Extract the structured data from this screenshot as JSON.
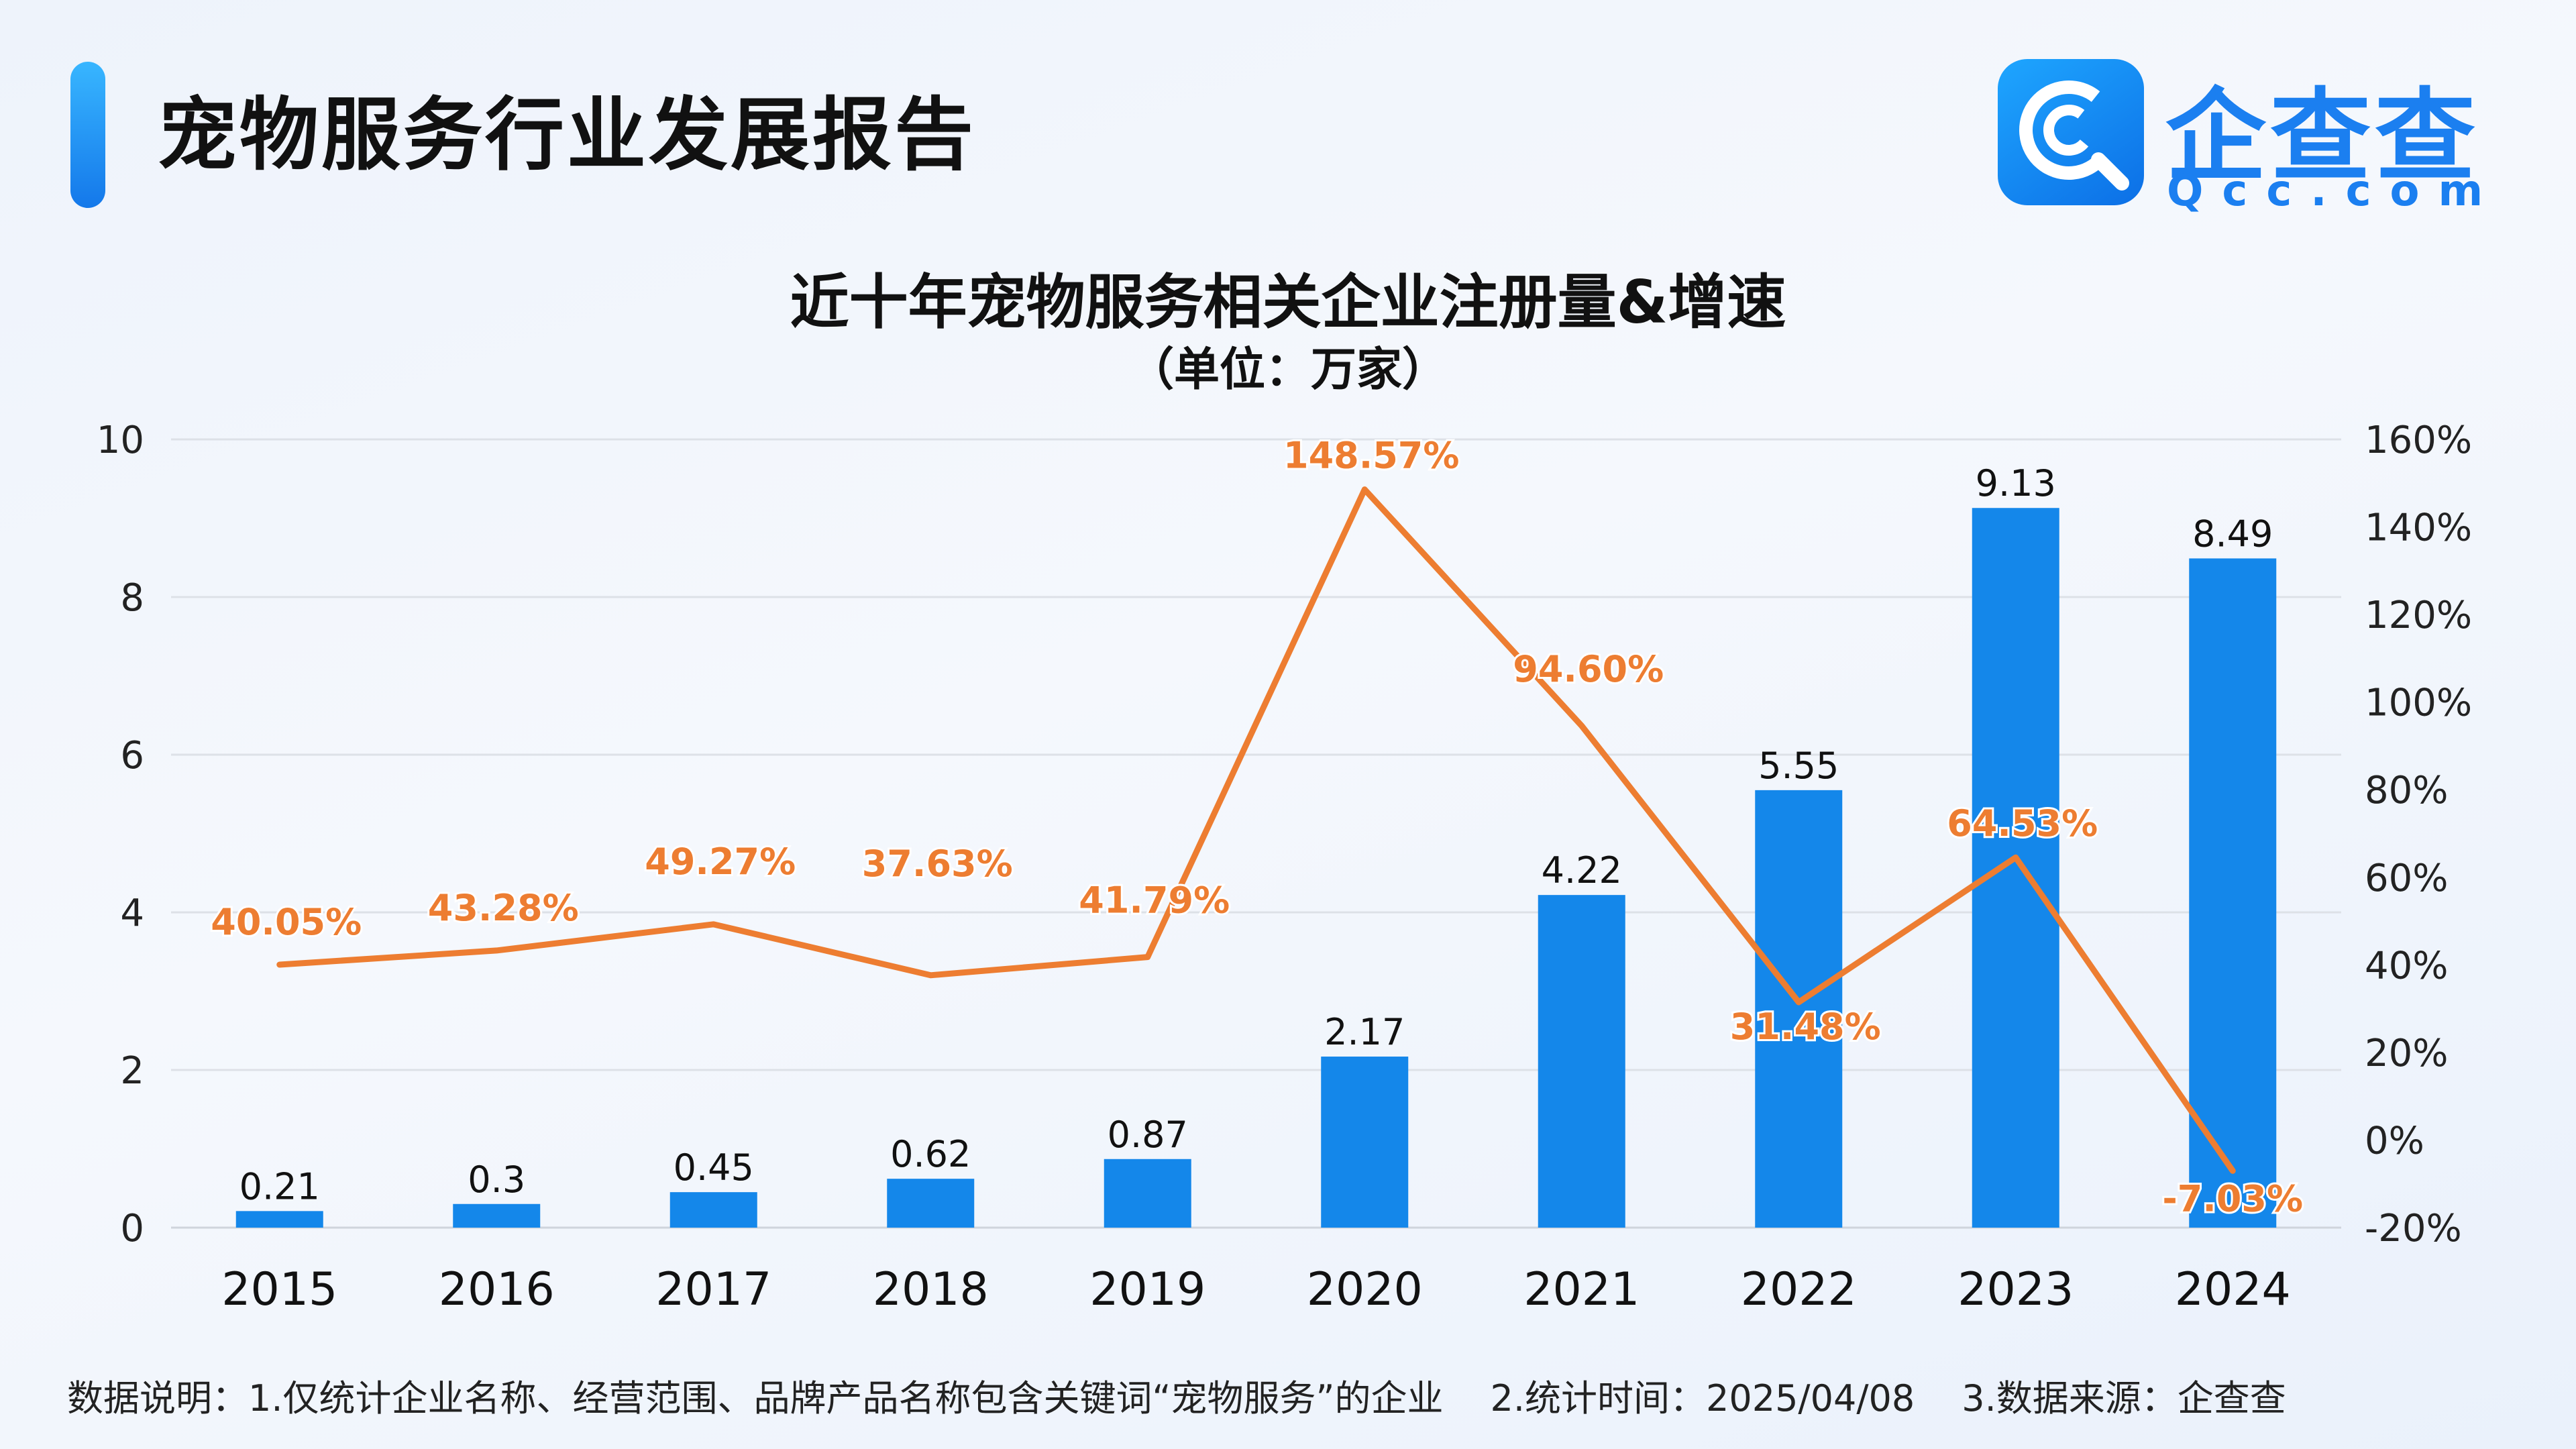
{
  "header": {
    "report_title": "宠物服务行业发展报告",
    "logo_name": "企查查",
    "logo_domain": "Qcc.com",
    "logo_icon": "qcc-logo-icon"
  },
  "colors": {
    "bar": "#1487ea",
    "line": "#ed7d31",
    "accent": "#1478ea"
  },
  "chart_data": {
    "type": "bar",
    "title": "近十年宠物服务相关企业注册量&增速",
    "subtitle": "（单位：万家）",
    "categories": [
      "2015",
      "2016",
      "2017",
      "2018",
      "2019",
      "2020",
      "2021",
      "2022",
      "2023",
      "2024"
    ],
    "series": [
      {
        "type": "bar",
        "axis": "left",
        "values": [
          0.21,
          0.3,
          0.45,
          0.62,
          0.87,
          2.17,
          4.22,
          5.55,
          9.13,
          8.49
        ],
        "labels": [
          "0.21",
          "0.3",
          "0.45",
          "0.62",
          "0.87",
          "2.17",
          "4.22",
          "5.55",
          "9.13",
          "8.49"
        ]
      },
      {
        "type": "line",
        "axis": "right",
        "values": [
          40.05,
          43.28,
          49.27,
          37.63,
          41.79,
          148.57,
          94.6,
          31.48,
          64.53,
          -7.03
        ],
        "labels": [
          "40.05%",
          "43.28%",
          "49.27%",
          "37.63%",
          "41.79%",
          "148.57%",
          "94.60%",
          "31.48%",
          "64.53%",
          "-7.03%"
        ]
      }
    ],
    "y_left": {
      "min": 0,
      "max": 10,
      "ticks": [
        "0",
        "2",
        "4",
        "6",
        "8",
        "10"
      ],
      "tick_values": [
        0,
        2,
        4,
        6,
        8,
        10
      ]
    },
    "y_right": {
      "min": -20,
      "max": 160,
      "ticks": [
        "-20%",
        "0%",
        "20%",
        "40%",
        "60%",
        "80%",
        "100%",
        "120%",
        "140%",
        "160%"
      ],
      "tick_values": [
        -20,
        0,
        20,
        40,
        60,
        80,
        100,
        120,
        140,
        160
      ]
    },
    "grid": true,
    "legend": "none"
  },
  "footnote": {
    "note1": "数据说明：1.仅统计企业名称、经营范围、品牌产品名称包含关键词“宠物服务”的企业",
    "note2": "2.统计时间：2025/04/08",
    "note3": "3.数据来源：企查查"
  }
}
